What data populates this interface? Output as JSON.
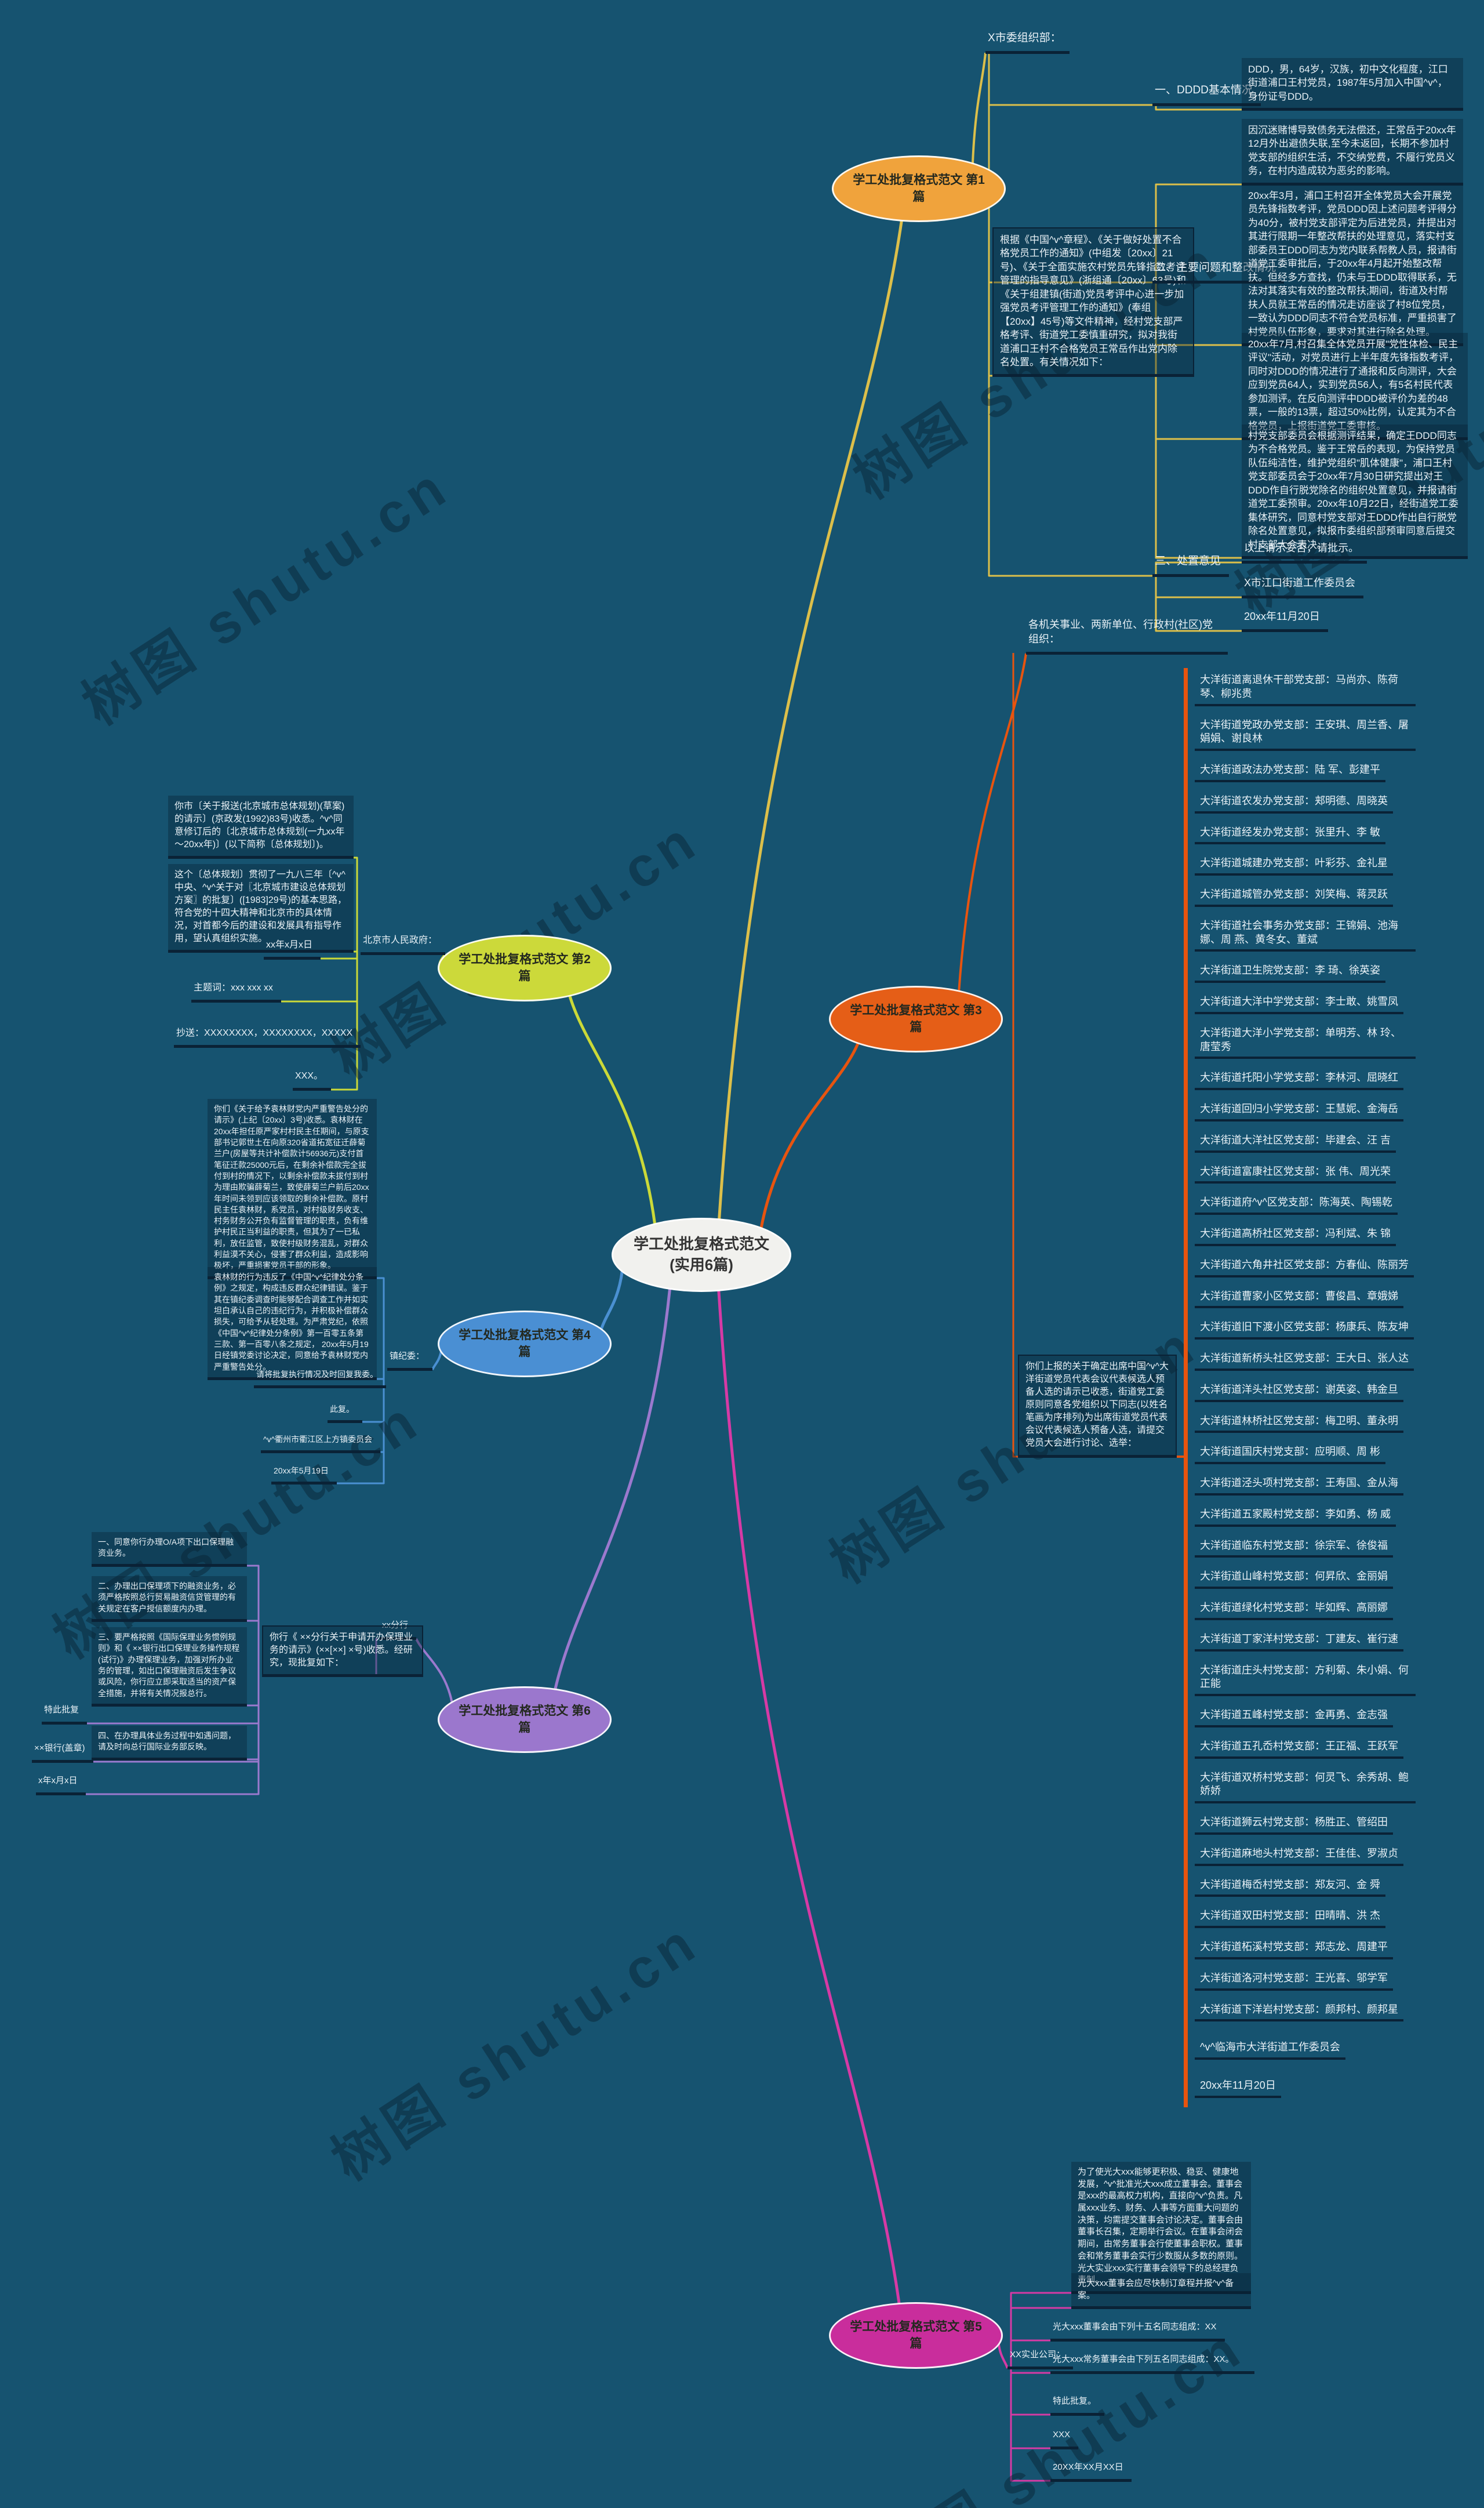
{
  "central": {
    "label": "学工处批复格式范文(实用6篇)"
  },
  "watermark": {
    "text": "树图 shutu.cn"
  },
  "branches": [
    {
      "id": "b1",
      "label": "学工处批复格式范文 第1篇",
      "color": "#f0a33c",
      "line": "#dcbf4a",
      "side": "right",
      "children": [
        {
          "id": "b1-org",
          "type": "label",
          "text": "X市委组织部：",
          "children": [
            {
              "id": "b1-intro",
              "type": "boxed",
              "text": "根据《中国^v^章程》、《关于做好处置不合格党员工作的通知》(中组发〔20xx〕21号)、《关于全面实施农村党员先锋指数考评管理的指导意见》(浙组通〔20xx〕63号)和《关于组建镇(街道)党员考评中心进一步加强党员考评管理工作的通知》(奉组【20xx】45号)等文件精神，经村党支部严格考评、街道党工委慎重研究，拟对我街道浦口王村不合格党员王常岳作出党内除名处置。有关情况如下："
            },
            {
              "id": "b1-s1",
              "type": "label",
              "text": "一、DDDD基本情况",
              "children": [
                {
                  "id": "b1-s1-1",
                  "type": "box",
                  "text": "DDD，男，64岁，汉族，初中文化程度，江口街道浦口王村党员，1987年5月加入中国^v^，身份证号DDD。"
                }
              ]
            },
            {
              "id": "b1-s2",
              "type": "label",
              "text": "二、主要问题和整改情况",
              "children": [
                {
                  "id": "b1-s2-1",
                  "type": "box",
                  "text": "因沉迷赌博导致债务无法偿还，王常岳于20xx年12月外出避债失联,至今未返回，长期不参加村党支部的组织生活，不交纳党费，不履行党员义务，在村内造成较为恶劣的影响。"
                },
                {
                  "id": "b1-s2-2",
                  "type": "box",
                  "text": "20xx年3月，浦口王村召开全体党员大会开展党员先锋指数考评，党员DDD因上述问题考评得分为40分，被村党支部评定为后进党员，并提出对其进行限期一年整改帮扶的处理意见，落实村支部委员王DDD同志为党内联系帮教人员，报请街道党工委审批后，于20xx年4月起开始整改帮扶。但经多方查找，仍未与王DDD取得联系，无法对其落实有效的整改帮扶;期间，街道及村帮扶人员就王常岳的情况走访座谈了村8位党员，一致认为DDD同志不符合党员标准，严重损害了村党员队伍形象，要求对其进行除名处理。"
                },
                {
                  "id": "b1-s2-3",
                  "type": "box",
                  "text": "20xx年7月,村召集全体党员开展\"党性体检、民主评议\"活动，对党员进行上半年度先锋指数考评，同时对DDD的情况进行了通报和反向测评，大会应到党员64人，实到党员56人，有5名村民代表参加测评。在反向测评中DDD被评价为差的48票，一般的13票，超过50%比例，认定其为不合格党员，上报街道党工委审核。"
                },
                {
                  "id": "b1-s2-4",
                  "type": "box",
                  "text": "村党支部委员会根据测评结果，确定王DDD同志为不合格党员。鉴于王常岳的表现，为保持党员队伍纯洁性，维护党组织\"肌体健康\"，浦口王村党支部委员会于20xx年7月30日研究提出对王DDD作自行脱党除名的组织处置意见，并报请街道党工委预审。20xx年10月22日，经街道党工委集体研究，同意村党支部对王DDD作出自行脱党除名处置意见，拟报市委组织部预审同意后提交村支部大会表决。"
                }
              ]
            },
            {
              "id": "b1-s3",
              "type": "label",
              "text": "三、处置意见",
              "children": [
                {
                  "id": "b1-s3-1",
                  "type": "label",
                  "text": "以上请示妥否，请批示。"
                },
                {
                  "id": "b1-s3-2",
                  "type": "label",
                  "text": "X市江口街道工作委员会"
                },
                {
                  "id": "b1-s3-3",
                  "type": "label",
                  "text": "20xx年11月20日"
                }
              ]
            }
          ]
        }
      ]
    },
    {
      "id": "b2",
      "label": "学工处批复格式范文 第2篇",
      "color": "#ccd93a",
      "line": "#cbd938",
      "side": "left",
      "children": [
        {
          "id": "b2-org",
          "type": "label",
          "text": "北京市人民政府：",
          "children": [
            {
              "id": "b2-1",
              "type": "box",
              "text": "你市〔关于报送(北京城市总体规划)(草案)的请示〕(京政发(1992)83号)收悉。^v^同意修订后的〔北京城市总体规划(一九xx年～20xx年)〕(以下简称〔总体规划〕)。"
            },
            {
              "id": "b2-2",
              "type": "box",
              "text": "这个〔总体规划〕贯彻了一九八三年〔^v^中央、^v^关于对〖北京城市建设总体规划方案〗的批复〕([1983]29号)的基本思路，符合党的十四大精神和北京市的具体情况，对首都今后的建设和发展具有指导作用，望认真组织实施。"
            },
            {
              "id": "b2-3",
              "type": "label",
              "text": "xx年x月x日"
            },
            {
              "id": "b2-4",
              "type": "label",
              "text": "主题词：xxx xxx xx"
            },
            {
              "id": "b2-5",
              "type": "label",
              "text": "抄送：XXXXXXXX，XXXXXXXX，XXXXX"
            },
            {
              "id": "b2-6",
              "type": "label",
              "text": "XXX。"
            }
          ]
        }
      ]
    },
    {
      "id": "b3",
      "label": "学工处批复格式范文 第3篇",
      "color": "#e55e17",
      "line": "#e8540f",
      "side": "right",
      "children": [
        {
          "id": "b3-org",
          "type": "label",
          "text": "各机关事业、两新单位、行政村(社区)党组织：",
          "children": [
            {
              "id": "b3-intro",
              "type": "boxed",
              "text": "你们上报的关于确定出席中国^v^大洋街道党员代表会议代表候选人预备人选的请示已收悉，街道党工委原则同意各党组织以下同志(以姓名笔画为序排列)为出席街道党员代表会议代表候选人预备人选，请提交党员大会进行讨论、选举：",
              "children": [
                {
                  "id": "b3-list",
                  "type": "rowlist",
                  "items": [
                    "大洋街道离退休干部党支部：马尚亦、陈荷琴、柳兆贵",
                    "大洋街道党政办党支部：王安琪、周兰香、屠娟娟、谢良林",
                    "大洋街道政法办党支部：陆 军、彭建平",
                    "大洋街道农发办党支部：郏明德、周晓英",
                    "大洋街道经发办党支部：张里升、李 敏",
                    "大洋街道城建办党支部：叶彩芬、金礼星",
                    "大洋街道城管办党支部：刘笑梅、蒋灵跃",
                    "大洋街道社会事务办党支部：王锦娟、池海娜、周 燕、黄冬女、董斌",
                    "大洋街道卫生院党支部：李 琦、徐英姿",
                    "大洋街道大洋中学党支部：李士敢、姚雪凤",
                    "大洋街道大洋小学党支部：单明芳、林 玲、唐莹秀",
                    "大洋街道托阳小学党支部：李林河、屈晓红",
                    "大洋街道回归小学党支部：王慧妮、金海岳",
                    "大洋街道大洋社区党支部：毕建会、汪 吉",
                    "大洋街道富康社区党支部：张 伟、周光荣",
                    "大洋街道府^v^区党支部：陈海英、陶锡乾",
                    "大洋街道高桥社区党支部：冯利斌、朱 锦",
                    "大洋街道六角井社区党支部：方春仙、陈丽芳",
                    "大洋街道曹家小区党支部：曹俊昌、章娥娣",
                    "大洋街道旧下渡小区党支部：杨康兵、陈友坤",
                    "大洋街道新桥头社区党支部：王大日、张人达",
                    "大洋街道洋头社区党支部：谢英姿、韩金旦",
                    "大洋街道林桥社区党支部：梅卫明、董永明",
                    "大洋街道国庆村党支部：应明顺、周 彬",
                    "大洋街道泾头项村党支部：王寿国、金从海",
                    "大洋街道五家殿村党支部：李如勇、杨 威",
                    "大洋街道临东村党支部：徐宗军、徐俊福",
                    "大洋街道山峰村党支部：何昇欣、金丽娟",
                    "大洋街道绿化村党支部：毕如辉、高丽娜",
                    "大洋街道丁家洋村党支部：丁建友、崔行速",
                    "大洋街道庄头村党支部：方利菊、朱小娟、何正能",
                    "大洋街道五峰村党支部：金再勇、金志强",
                    "大洋街道五孔岙村党支部：王正福、王跃军",
                    "大洋街道双桥村党支部：何灵飞、余秀胡、鲍娇娇",
                    "大洋街道狮云村党支部：杨胜正、管绍田",
                    "大洋街道麻地头村党支部：王佳佳、罗淑贞",
                    "大洋街道梅岙村党支部：郑友河、金 舜",
                    "大洋街道双田村党支部：田晴晴、洪 杰",
                    "大洋街道柘溪村党支部：郑志龙、周建平",
                    "大洋街道洛河村党支部：王光喜、邬学军",
                    "大洋街道下洋岩村党支部：颜邦村、颜邦星",
                    "^v^临海市大洋街道工作委员会",
                    "20xx年11月20日"
                  ]
                }
              ]
            }
          ]
        }
      ]
    },
    {
      "id": "b4",
      "label": "学工处批复格式范文 第4篇",
      "color": "#4a8fd3",
      "line": "#4a90d2",
      "side": "left",
      "children": [
        {
          "id": "b4-org",
          "type": "label",
          "text": "镇纪委：",
          "children": [
            {
              "id": "b4-1",
              "type": "box",
              "text": "你们《关于给予袁林财党内严重警告处分的请示》(上纪〔20xx〕3号)收悉。袁林财在20xx年担任原严家村村民主任期间，与原支部书记郭世土在向原320省道拓宽征迁薛菊兰户(房屋等共计补偿款计56936元)支付首笔征迁款25000元后，在剩余补偿款完全拔付到村的情况下，以剩余补偿款未拔付到村为理由欺骗薛菊兰，致使薛菊兰户前后20xx年时间未领到应该领取的剩余补偿款。原村民主任袁林财，系党员，对村级财务收支、村务财务公开负有监督管理的职责，负有维护村民正当利益的职责，但其为了一已私利，放任监管，致使村级财务混乱，对群众利益漠不关心，侵害了群众利益，造成影响极坏，严重损害党员干部的形象。"
            },
            {
              "id": "b4-2",
              "type": "box",
              "text": "袁林财的行为违反了《中国^v^纪律处分条例》之规定，构成违反群众纪律错误。鉴于其在镇纪委调查时能够配合调查工作并如实坦白承认自己的违纪行为，并积极补偿群众损失，可给予从轻处理。为严肃党纪，依照《中国^v^纪律处分条例》第一百零五条第三款、第一百零八条之规定， 20xx年5月19日经镇党委讨论决定，同意给予袁林财党内严重警告处分。"
            },
            {
              "id": "b4-3",
              "type": "label",
              "text": "请将批复执行情况及时回复我委。"
            },
            {
              "id": "b4-4",
              "type": "label",
              "text": "此复。"
            },
            {
              "id": "b4-5",
              "type": "label",
              "text": "^v^衢州市衢江区上方镇委员会"
            },
            {
              "id": "b4-6",
              "type": "label",
              "text": "20xx年5月19日"
            }
          ]
        }
      ]
    },
    {
      "id": "b5",
      "label": "学工处批复格式范文 第5篇",
      "color": "#c92d9c",
      "line": "#d63aa5",
      "side": "right",
      "children": [
        {
          "id": "b5-org",
          "type": "label",
          "text": "XX实业公司：",
          "children": [
            {
              "id": "b5-1",
              "type": "box",
              "text": "为了使光大xxx能够更积极、稳妥、健康地发展，^v^批准光大xxx成立董事会。董事会是xxx的最高权力机构，直接向^v^负责。凡属xxx业务、财务、人事等方面重大问题的决策，均需提交董事会讨论决定。董事会由董事长召集，定期举行会议。在董事会闭会期间，由常务董事会行使董事会职权。董事会和常务董事会实行少数服从多数的原则。光大实业xxx实行董事会领导下的总经理负责制。"
            },
            {
              "id": "b5-2",
              "type": "box",
              "text": "光大xxx董事会应尽快制订章程并报^v^备案。"
            },
            {
              "id": "b5-3",
              "type": "label",
              "text": "光大xxx董事会由下列十五名同志组成：XX"
            },
            {
              "id": "b5-4",
              "type": "label",
              "text": "光大xxx常务董事会由下列五名同志组成：XX。"
            },
            {
              "id": "b5-5",
              "type": "label",
              "text": "特此批复。"
            },
            {
              "id": "b5-6",
              "type": "label",
              "text": "XXX"
            },
            {
              "id": "b5-7",
              "type": "label",
              "text": "20XX年XX月XX日"
            }
          ]
        }
      ]
    },
    {
      "id": "b6",
      "label": "学工处批复格式范文 第6篇",
      "color": "#9b77cd",
      "line": "#9b79ce",
      "side": "left",
      "children": [
        {
          "id": "b6-org",
          "type": "label",
          "text": "xx分行",
          "children": [
            {
              "id": "b6-intro",
              "type": "boxed",
              "text": "你行《 ××分行关于申请开办保理业务的请示》(××[××] ×号)收悉。经研究，现批复如下：",
              "children": [
                {
                  "id": "b6-1",
                  "type": "box",
                  "text": "一、同意你行办理O/A项下出口保理融资业务。"
                },
                {
                  "id": "b6-2",
                  "type": "box",
                  "text": "二、办理出口保理项下的融资业务，必须严格按照总行贸易融资信贷管理的有关规定在客户授信额度内办理。"
                },
                {
                  "id": "b6-3",
                  "type": "box",
                  "text": "三、要严格按照《国际保理业务惯例规则》和《 ××银行出口保理业务操作规程(试行)》办理保理业务，加强对所办业务的管理，如出口保理融资后发生争议或风险，你行应立即采取适当的资产保全措施，并将有关情况报总行。"
                },
                {
                  "id": "b6-4",
                  "type": "label",
                  "text": "特此批复"
                },
                {
                  "id": "b6-5",
                  "type": "box",
                  "text": "四、在办理具体业务过程中如遇问题，请及时向总行国际业务部反映。"
                },
                {
                  "id": "b6-6",
                  "type": "label",
                  "text": "××银行(盖章)"
                },
                {
                  "id": "b6-7",
                  "type": "label",
                  "text": "x年x月x日"
                }
              ]
            }
          ]
        }
      ]
    }
  ]
}
